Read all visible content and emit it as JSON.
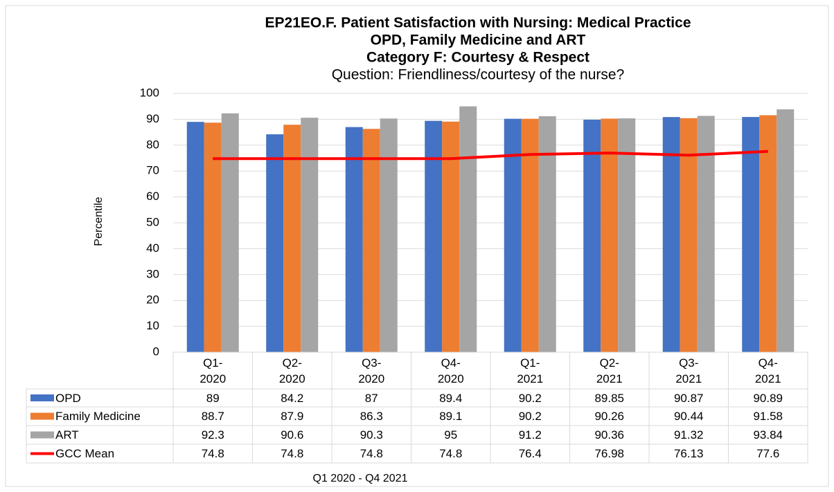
{
  "chart_data": {
    "type": "bar",
    "title": [
      "EP21EO.F. Patient Satisfaction with Nursing: Medical Practice",
      "OPD, Family Medicine and ART",
      "Category F: Courtesy & Respect"
    ],
    "subtitle": "Question: Friendliness/courtesy of the nurse?",
    "y_label": "Percentile",
    "x_label": "Q1 2020 - Q4 2021",
    "categories": [
      "Q1-\n2020",
      "Q2-\n2020",
      "Q3-\n2020",
      "Q4-\n2020",
      "Q1-\n2021",
      "Q2-\n2021",
      "Q3-\n2021",
      "Q4-\n2021"
    ],
    "series": [
      {
        "name": "OPD",
        "color": "#4472c4",
        "values": [
          89,
          84.2,
          87,
          89.4,
          90.2,
          89.85,
          90.87,
          90.89
        ]
      },
      {
        "name": "Family Medicine",
        "color": "#ed7d31",
        "values": [
          88.7,
          87.9,
          86.3,
          89.1,
          90.2,
          90.26,
          90.44,
          91.58
        ]
      },
      {
        "name": "ART",
        "color": "#a5a5a5",
        "values": [
          92.3,
          90.6,
          90.3,
          95,
          91.2,
          90.36,
          91.32,
          93.84
        ]
      },
      {
        "name": "GCC Mean",
        "color": "#ff0000",
        "type": "line",
        "values": [
          74.8,
          74.8,
          74.8,
          74.8,
          76.4,
          76.98,
          76.13,
          77.6
        ]
      }
    ],
    "ylim": [
      0,
      100
    ],
    "yticks": [
      0,
      10,
      20,
      30,
      40,
      50,
      60,
      70,
      80,
      90,
      100
    ],
    "grid": true,
    "data_table": true
  }
}
